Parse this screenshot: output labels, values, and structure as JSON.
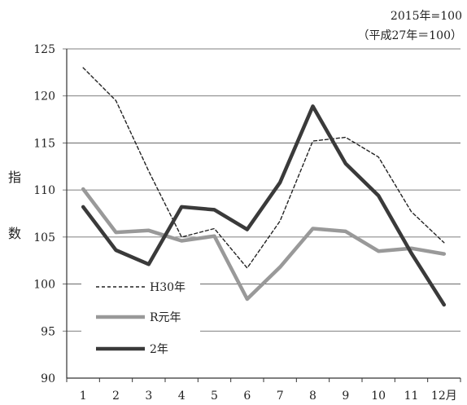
{
  "chart_data": {
    "type": "line",
    "note_lines": [
      "2015年=100",
      "（平成27年＝100）"
    ],
    "ylabel_chars": [
      "指",
      "数"
    ],
    "categories": [
      "1",
      "2",
      "3",
      "4",
      "5",
      "6",
      "7",
      "8",
      "9",
      "10",
      "11",
      "12月"
    ],
    "ylim": [
      90,
      125
    ],
    "yticks": [
      90,
      95,
      100,
      105,
      110,
      115,
      120,
      125
    ],
    "grid": true,
    "legend_position": "bottom-left",
    "series": [
      {
        "name": "H30年",
        "color": "#222222",
        "style": "dashed",
        "values": [
          123.0,
          119.5,
          112.0,
          105.0,
          105.9,
          101.7,
          106.7,
          115.2,
          115.6,
          113.5,
          107.7,
          104.4
        ]
      },
      {
        "name": "R元年",
        "color": "#999999",
        "style": "thick",
        "values": [
          110.1,
          105.5,
          105.7,
          104.6,
          105.1,
          98.4,
          101.8,
          105.9,
          105.6,
          103.5,
          103.8,
          103.2
        ]
      },
      {
        "name": "2年",
        "color": "#3a3a3a",
        "style": "thick",
        "values": [
          108.2,
          103.6,
          102.1,
          108.2,
          107.9,
          105.8,
          110.8,
          118.9,
          112.8,
          109.4,
          103.3,
          97.8
        ]
      }
    ]
  }
}
